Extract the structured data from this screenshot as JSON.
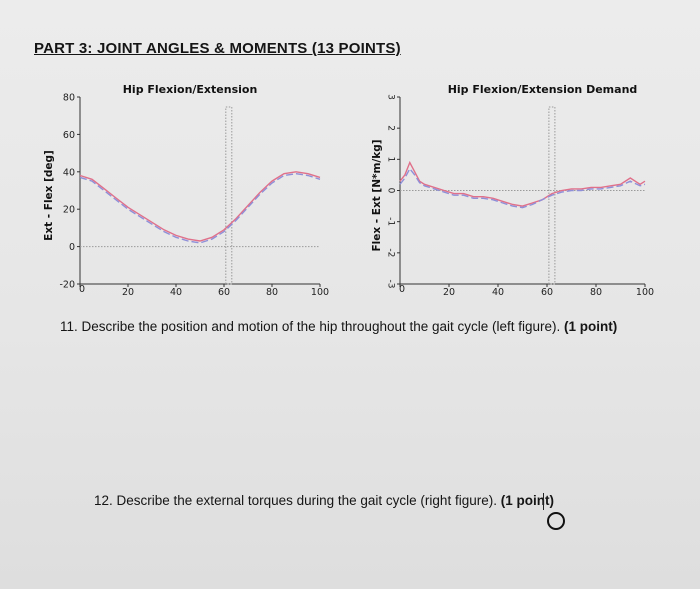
{
  "heading": "PART 3: JOINT ANGLES & MOMENTS (13 POINTS)",
  "questions": [
    {
      "text": "11. Describe the position and motion of the hip throughout the gait cycle (left figure). ",
      "points": "(1 point)"
    },
    {
      "text": "12. Describe the external torques during the gait cycle (right figure). ",
      "points": "(1 point)"
    }
  ],
  "colors": {
    "series_a": "#e0708a",
    "series_b": "#8f8fd8",
    "axis": "#333333",
    "reference": "#9a9a9a"
  },
  "chart_data": [
    {
      "type": "line",
      "title": "Hip Flexion/Extension",
      "xlabel": "",
      "ylabel": "Ext - Flex [deg]",
      "xlim": [
        0,
        100
      ],
      "ylim": [
        -20,
        80
      ],
      "xticks": [
        "0",
        "20",
        "40",
        "60",
        "80",
        "100"
      ],
      "yticks": [
        "-20",
        "0",
        "20",
        "40",
        "60",
        "80"
      ],
      "ref_x": 62,
      "ref_y": 0,
      "series": [
        {
          "x": [
            0,
            5,
            10,
            15,
            20,
            25,
            30,
            35,
            40,
            45,
            50,
            55,
            60,
            65,
            70,
            75,
            80,
            85,
            90,
            95,
            100
          ],
          "y": [
            38,
            36,
            31,
            26,
            21,
            17,
            13,
            9,
            6,
            4,
            3,
            5,
            9,
            15,
            22,
            29,
            35,
            39,
            40,
            39,
            37
          ]
        },
        {
          "x": [
            0,
            5,
            10,
            15,
            20,
            25,
            30,
            35,
            40,
            45,
            50,
            55,
            60,
            65,
            70,
            75,
            80,
            85,
            90,
            95,
            100
          ],
          "y": [
            37,
            35,
            30,
            25,
            20,
            16,
            12,
            8,
            5,
            3,
            2,
            4,
            8,
            14,
            21,
            28,
            34,
            38,
            39,
            38,
            36
          ]
        }
      ]
    },
    {
      "type": "line",
      "title": "Hip Flexion/Extension Demand",
      "xlabel": "",
      "ylabel": "Flex - Ext [N*m/kg]",
      "xlim": [
        0,
        100
      ],
      "ylim": [
        -3,
        3
      ],
      "xticks": [
        "0",
        "20",
        "40",
        "60",
        "80",
        "100"
      ],
      "yticks": [
        "-3",
        "-2",
        "-1",
        "0",
        "1",
        "2",
        "3"
      ],
      "ref_x": 62,
      "ref_y": 0,
      "series": [
        {
          "x": [
            0,
            2,
            4,
            6,
            8,
            10,
            14,
            18,
            22,
            26,
            30,
            34,
            38,
            42,
            46,
            50,
            54,
            58,
            62,
            66,
            70,
            74,
            78,
            82,
            86,
            90,
            94,
            98,
            100
          ],
          "y": [
            0.3,
            0.5,
            0.9,
            0.6,
            0.3,
            0.2,
            0.1,
            0.0,
            -0.1,
            -0.1,
            -0.2,
            -0.2,
            -0.25,
            -0.35,
            -0.45,
            -0.5,
            -0.4,
            -0.3,
            -0.1,
            0.0,
            0.05,
            0.05,
            0.1,
            0.1,
            0.15,
            0.2,
            0.4,
            0.2,
            0.3
          ]
        },
        {
          "x": [
            0,
            2,
            4,
            6,
            8,
            10,
            14,
            18,
            22,
            26,
            30,
            34,
            38,
            42,
            46,
            50,
            54,
            58,
            62,
            66,
            70,
            74,
            78,
            82,
            86,
            90,
            94,
            98,
            100
          ],
          "y": [
            0.2,
            0.4,
            0.7,
            0.5,
            0.25,
            0.15,
            0.05,
            -0.05,
            -0.15,
            -0.15,
            -0.25,
            -0.25,
            -0.3,
            -0.4,
            -0.5,
            -0.55,
            -0.45,
            -0.3,
            -0.15,
            -0.05,
            0.0,
            0.0,
            0.05,
            0.05,
            0.1,
            0.15,
            0.3,
            0.15,
            0.2
          ]
        }
      ]
    }
  ]
}
